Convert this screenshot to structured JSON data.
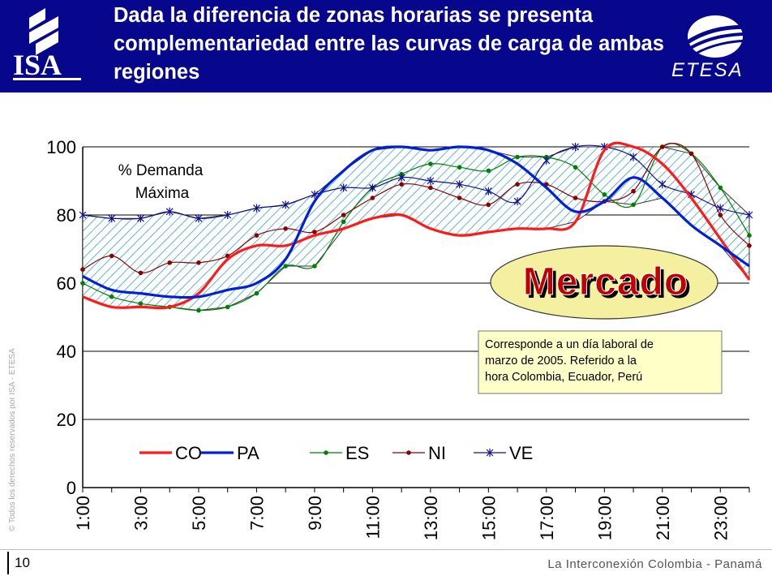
{
  "header": {
    "title": "Dada la diferencia de zonas horarias se presenta complementariedad entre las curvas de carga de ambas regiones",
    "background": "#07078e",
    "logo_left": "ISA",
    "logo_right": "ETESA"
  },
  "footer": {
    "page_number": "10",
    "text": "La Interconexión Colombia - Panamá",
    "copyright": "© Todos los derechos reservados por ISA - ETESA"
  },
  "chart_data": {
    "type": "line",
    "title": "",
    "annotation_area_label_line1": "% Demanda",
    "annotation_area_label_line2": "Máxima",
    "badge": "Mercado",
    "note": "Corresponde a un día laboral de marzo de 2005. Referido a la hora Colombia, Ecuador, Perú",
    "x": [
      1,
      2,
      3,
      4,
      5,
      6,
      7,
      8,
      9,
      10,
      11,
      12,
      13,
      14,
      15,
      16,
      17,
      18,
      19,
      20,
      21,
      22,
      23,
      24
    ],
    "xtick_labels": [
      "1:00",
      "3:00",
      "5:00",
      "7:00",
      "9:00",
      "11:00",
      "13:00",
      "15:00",
      "17:00",
      "19:00",
      "21:00",
      "23:00"
    ],
    "ylim": [
      0,
      100
    ],
    "yticks": [
      0,
      20,
      40,
      60,
      80,
      100
    ],
    "grid": true,
    "legend_position": "bottom-inside",
    "series": [
      {
        "name": "CO",
        "color": "#ff1a1a",
        "marker": "none",
        "values": [
          56,
          53,
          53,
          53,
          57,
          67,
          71,
          71,
          74,
          76,
          79,
          80,
          76,
          74,
          75,
          76,
          76,
          78,
          99,
          100,
          95,
          85,
          73,
          61
        ]
      },
      {
        "name": "PA",
        "color": "#0020d8",
        "marker": "none",
        "values": [
          62,
          58,
          57,
          56,
          56,
          58,
          60,
          67,
          84,
          93,
          99,
          100,
          99,
          100,
          99,
          95,
          88,
          81,
          84,
          91,
          85,
          77,
          71,
          65
        ]
      },
      {
        "name": "ES",
        "color": "#008000",
        "marker": "dot",
        "values": [
          60,
          56,
          54,
          53,
          52,
          53,
          57,
          65,
          65,
          78,
          88,
          92,
          95,
          94,
          93,
          97,
          97,
          94,
          86,
          83,
          100,
          98,
          88,
          74
        ]
      },
      {
        "name": "NI",
        "color": "#8b0000",
        "marker": "dot",
        "values": [
          64,
          68,
          63,
          66,
          66,
          68,
          74,
          76,
          75,
          80,
          85,
          89,
          88,
          85,
          83,
          89,
          89,
          85,
          84,
          87,
          100,
          98,
          80,
          71
        ]
      },
      {
        "name": "VE",
        "color": "#101090",
        "marker": "star",
        "values": [
          80,
          79,
          79,
          81,
          79,
          80,
          82,
          83,
          86,
          88,
          88,
          91,
          90,
          89,
          87,
          84,
          96,
          100,
          100,
          97,
          89,
          86,
          82,
          80
        ]
      }
    ]
  }
}
